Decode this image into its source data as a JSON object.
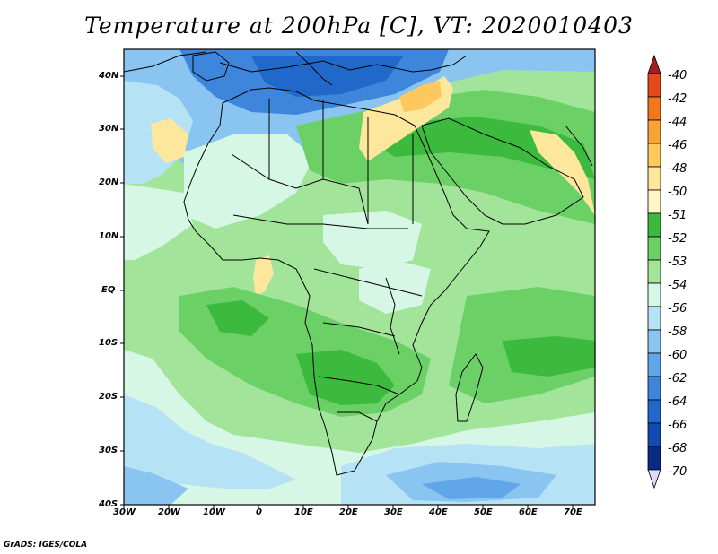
{
  "title": "Temperature at 200hPa [C], VT: 2020010403",
  "credit": "GrADS: IGES/COLA",
  "map": {
    "lon_range": [
      -30,
      75
    ],
    "lat_range": [
      -40,
      45
    ],
    "x_ticks": [
      "30W",
      "20W",
      "10W",
      "0",
      "10E",
      "20E",
      "30E",
      "40E",
      "50E",
      "60E",
      "70E"
    ],
    "y_ticks": [
      "40N",
      "30N",
      "20N",
      "10N",
      "EQ",
      "10S",
      "20S",
      "30S",
      "40S"
    ]
  },
  "colorbar": {
    "labels": [
      "-40",
      "-42",
      "-44",
      "-46",
      "-48",
      "-50",
      "-51",
      "-52",
      "-53",
      "-54",
      "-56",
      "-58",
      "-60",
      "-62",
      "-64",
      "-66",
      "-68",
      "-70"
    ],
    "colors": [
      "#a01f1c",
      "#e44a1a",
      "#f2791b",
      "#f8a338",
      "#fdc85e",
      "#fde79c",
      "#fff6c8",
      "#3cba3e",
      "#6bd066",
      "#a2e59a",
      "#d6f6e6",
      "#b6e2f6",
      "#8ac4f0",
      "#60a6e8",
      "#3e86dc",
      "#2168cb",
      "#124bb0",
      "#0b2a82",
      "#dcdcf8"
    ]
  }
}
